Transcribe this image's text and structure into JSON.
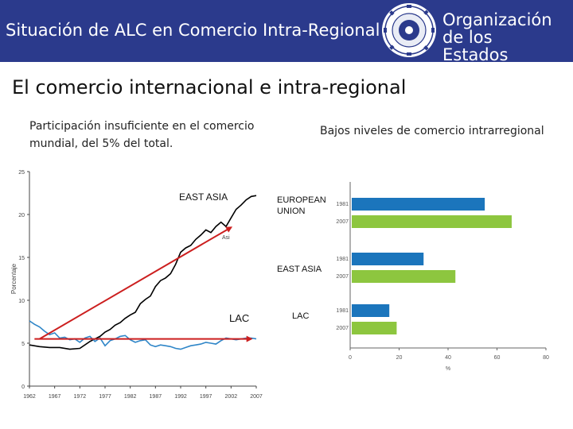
{
  "header": {
    "title": "Situación de ALC en Comercio Intra-Regional",
    "org_name_line1": "Organización de los",
    "org_name_line2": "Estados Americanos",
    "brand_color": "#2b3a8c"
  },
  "slide": {
    "title": "El comercio internacional e intra-regional",
    "left_subtitle": "Participación insuficiente en el comercio mundial, del 5% del total.",
    "right_subtitle": "Bajos niveles de comercio intrarregional"
  },
  "chart_data": [
    {
      "type": "line",
      "ylabel": "Porcentaje",
      "xlabel": "",
      "ylim": [
        0,
        25
      ],
      "yticks": [
        0,
        5,
        10,
        15,
        20,
        25
      ],
      "xticks": [
        "1962",
        "1967",
        "1972",
        "1977",
        "1982",
        "1987",
        "1992",
        "1997",
        "2002",
        "2007"
      ],
      "series": [
        {
          "name": "Asia",
          "color": "#000000",
          "x": [
            1962,
            1964,
            1966,
            1968,
            1970,
            1972,
            1974,
            1976,
            1977,
            1978,
            1979,
            1980,
            1981,
            1982,
            1983,
            1984,
            1985,
            1986,
            1987,
            1988,
            1989,
            1990,
            1991,
            1992,
            1993,
            1994,
            1995,
            1996,
            1997,
            1998,
            1999,
            2000,
            2001,
            2002,
            2003,
            2004,
            2005,
            2006,
            2007
          ],
          "values": [
            4.8,
            4.6,
            4.5,
            4.5,
            4.3,
            4.4,
            5.2,
            5.8,
            6.3,
            6.6,
            7.1,
            7.4,
            7.9,
            8.3,
            8.6,
            9.6,
            10.1,
            10.5,
            11.6,
            12.3,
            12.6,
            13.1,
            14.2,
            15.6,
            16.1,
            16.4,
            17.1,
            17.6,
            18.2,
            17.9,
            18.6,
            19.1,
            18.6,
            19.6,
            20.6,
            21.1,
            21.7,
            22.1,
            22.2
          ]
        },
        {
          "name": "LAC",
          "color": "#2f86c8",
          "x": [
            1962,
            1963,
            1964,
            1965,
            1966,
            1967,
            1968,
            1969,
            1970,
            1971,
            1972,
            1973,
            1974,
            1975,
            1976,
            1977,
            1978,
            1979,
            1980,
            1981,
            1982,
            1983,
            1984,
            1985,
            1986,
            1987,
            1988,
            1989,
            1990,
            1991,
            1992,
            1993,
            1994,
            1995,
            1996,
            1997,
            1998,
            1999,
            2000,
            2001,
            2002,
            2003,
            2004,
            2005,
            2006,
            2007
          ],
          "values": [
            7.6,
            7.2,
            6.9,
            6.4,
            6.0,
            6.2,
            5.6,
            5.7,
            5.4,
            5.5,
            5.1,
            5.6,
            5.8,
            5.2,
            5.6,
            4.7,
            5.3,
            5.5,
            5.8,
            5.9,
            5.4,
            5.1,
            5.3,
            5.4,
            4.8,
            4.6,
            4.8,
            4.7,
            4.6,
            4.4,
            4.3,
            4.5,
            4.7,
            4.8,
            4.9,
            5.1,
            5.0,
            4.9,
            5.3,
            5.6,
            5.5,
            5.4,
            5.5,
            5.6,
            5.6,
            5.5
          ]
        }
      ],
      "annotations": [
        {
          "text": "EAST ASIA",
          "from": [
            1964,
            5.5
          ],
          "to": [
            2002,
            18.5
          ],
          "color": "#cc1f1f"
        },
        {
          "text": "LAC",
          "from": [
            1963,
            5.5
          ],
          "to": [
            2006,
            5.5
          ],
          "color": "#cc1f1f"
        },
        {
          "text": "Asi"
        }
      ]
    },
    {
      "type": "bar",
      "orientation": "horizontal",
      "xlabel": "%",
      "xlim": [
        0,
        80
      ],
      "xticks": [
        0,
        20,
        40,
        60,
        80
      ],
      "categories": [
        "EUROPEAN UNION",
        "EAST ASIA",
        "LAC"
      ],
      "series": [
        {
          "name": "1981",
          "color": "#1b75bc",
          "values": [
            55,
            30,
            16
          ]
        },
        {
          "name": "2007",
          "color": "#8dc63f",
          "values": [
            66,
            43,
            19
          ]
        }
      ]
    }
  ]
}
